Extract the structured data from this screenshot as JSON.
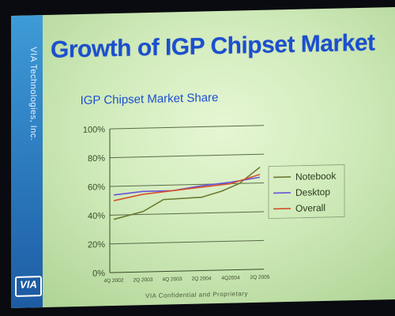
{
  "slide": {
    "title": "Growth of IGP Chipset Market",
    "sidebar_text": "VIA Technologies, Inc.",
    "logo_text": "VIA",
    "footer": "VIA Confidential and Proprietary"
  },
  "colors": {
    "title": "#1b4fd0",
    "sidebar": "#2b78bd",
    "notebook": "#6b7a2f",
    "desktop": "#6a52d8",
    "overall": "#d6502a"
  },
  "chart_data": {
    "type": "line",
    "title": "IGP Chipset Market Share",
    "xlabel": "",
    "ylabel": "",
    "categories": [
      "4Q 2002",
      "2Q 2003",
      "4Q 2003",
      "2Q 2004",
      "4Q2004",
      "2Q 2005"
    ],
    "x_positions": [
      0,
      1,
      2,
      3,
      4,
      5
    ],
    "ylim": [
      0,
      100
    ],
    "yticks": [
      0,
      20,
      40,
      60,
      80,
      100
    ],
    "ytick_labels": [
      "0%",
      "20%",
      "40%",
      "60%",
      "80%",
      "100%"
    ],
    "grid": true,
    "legend_position": "right",
    "series": [
      {
        "name": "Notebook",
        "color": "#6b7a2f",
        "x": [
          0,
          1,
          1.7,
          3,
          3.7,
          4.3,
          5
        ],
        "values": [
          37,
          42,
          50,
          51,
          55,
          60,
          71
        ]
      },
      {
        "name": "Desktop",
        "color": "#6a52d8",
        "x": [
          0,
          1,
          2,
          3,
          4,
          5
        ],
        "values": [
          54,
          56,
          56,
          59,
          61,
          64
        ]
      },
      {
        "name": "Overall",
        "color": "#d6502a",
        "x": [
          0,
          1,
          2,
          3,
          4,
          5
        ],
        "values": [
          50,
          54,
          56,
          58,
          60,
          66
        ]
      }
    ]
  }
}
